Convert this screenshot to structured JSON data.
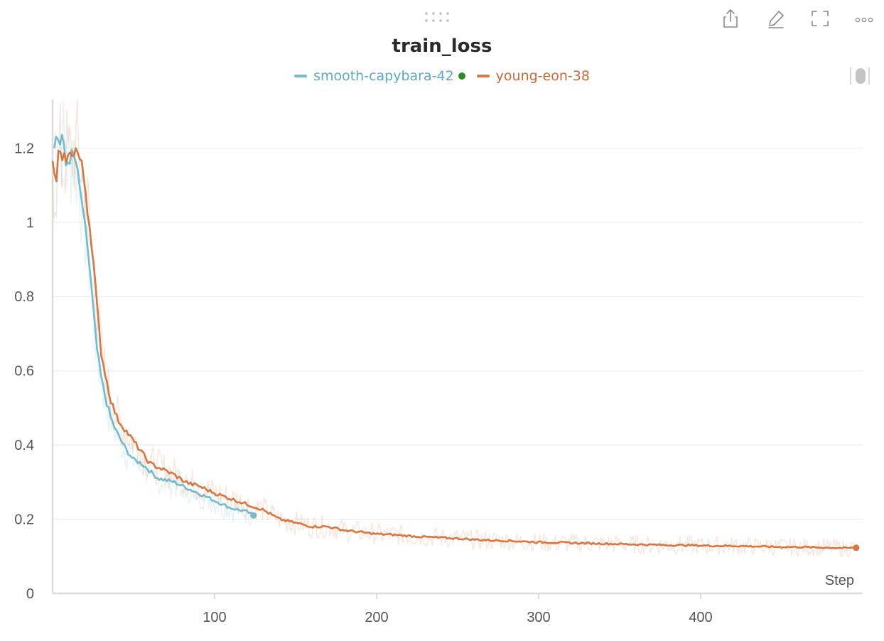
{
  "panel": {
    "icons": [
      "drag-handle-icon",
      "share-icon",
      "edit-icon",
      "fullscreen-icon",
      "more-icon"
    ]
  },
  "chart_data": {
    "type": "line",
    "title": "train_loss",
    "xlabel": "Step",
    "ylabel": "",
    "xlim": [
      0,
      500
    ],
    "ylim": [
      0,
      1.35
    ],
    "xticks": [
      100,
      200,
      300,
      400
    ],
    "yticks": [
      0,
      0.2,
      0.4,
      0.6,
      0.8,
      1,
      1.2
    ],
    "ytick_labels": [
      "0",
      "0.2",
      "0.4",
      "0.6",
      "0.8",
      "1",
      "1.2"
    ],
    "grid": true,
    "legend_position": "top-center",
    "series": [
      {
        "name": "smooth-capybara-42",
        "color": "#6fbdd3",
        "marker_color": "#2a8a2a",
        "x": [
          1,
          3,
          5,
          6,
          8,
          10,
          12,
          14,
          16,
          18,
          19,
          21,
          23,
          25,
          27,
          30,
          33,
          36,
          40,
          45,
          50,
          55,
          60,
          65,
          70,
          75,
          80,
          85,
          90,
          95,
          100,
          105,
          110,
          115,
          120,
          124
        ],
        "y": [
          1.22,
          1.23,
          1.21,
          1.24,
          1.15,
          1.17,
          1.18,
          1.17,
          1.11,
          1.06,
          1.01,
          0.96,
          0.87,
          0.77,
          0.67,
          0.58,
          0.52,
          0.47,
          0.43,
          0.39,
          0.36,
          0.35,
          0.33,
          0.31,
          0.305,
          0.3,
          0.29,
          0.28,
          0.27,
          0.26,
          0.25,
          0.24,
          0.23,
          0.225,
          0.22,
          0.21
        ]
      },
      {
        "name": "young-eon-38",
        "color": "#d9763f",
        "x": [
          0,
          2,
          4,
          6,
          8,
          10,
          12,
          14,
          16,
          18,
          20,
          22,
          24,
          26,
          28,
          30,
          33,
          36,
          40,
          45,
          50,
          55,
          60,
          65,
          70,
          75,
          80,
          85,
          90,
          95,
          100,
          110,
          120,
          130,
          140,
          150,
          160,
          170,
          180,
          190,
          200,
          210,
          220,
          230,
          240,
          250,
          260,
          270,
          280,
          290,
          300,
          310,
          320,
          330,
          340,
          350,
          360,
          370,
          380,
          390,
          400,
          410,
          420,
          430,
          440,
          450,
          460,
          470,
          480,
          490,
          496
        ],
        "y": [
          1.15,
          1.1,
          1.2,
          1.15,
          1.18,
          1.17,
          1.19,
          1.2,
          1.18,
          1.15,
          1.1,
          1.02,
          0.95,
          0.85,
          0.74,
          0.65,
          0.58,
          0.52,
          0.47,
          0.44,
          0.41,
          0.38,
          0.35,
          0.34,
          0.33,
          0.32,
          0.305,
          0.295,
          0.29,
          0.28,
          0.27,
          0.255,
          0.24,
          0.225,
          0.2,
          0.19,
          0.18,
          0.18,
          0.17,
          0.165,
          0.16,
          0.158,
          0.155,
          0.152,
          0.15,
          0.148,
          0.145,
          0.143,
          0.142,
          0.14,
          0.138,
          0.137,
          0.136,
          0.135,
          0.134,
          0.133,
          0.132,
          0.131,
          0.13,
          0.13,
          0.129,
          0.128,
          0.128,
          0.127,
          0.126,
          0.125,
          0.125,
          0.124,
          0.123,
          0.122,
          0.123
        ]
      }
    ]
  }
}
